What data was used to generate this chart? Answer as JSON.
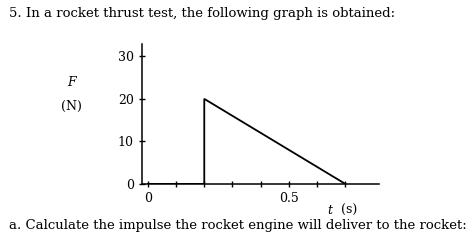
{
  "title_text": "5. In a rocket thrust test, the following graph is obtained:",
  "subtitle_text": "a. Calculate the impulse the rocket engine will deliver to the rocket:",
  "line_x": [
    0,
    0.2,
    0.2,
    0.7
  ],
  "line_y": [
    0,
    0,
    20,
    0
  ],
  "xlim": [
    -0.02,
    0.82
  ],
  "ylim": [
    0,
    33
  ],
  "yticks": [
    0,
    10,
    20,
    30
  ],
  "xtick_positions": [
    0,
    0.1,
    0.2,
    0.3,
    0.4,
    0.5,
    0.6,
    0.7
  ],
  "xtick_labels": [
    "0",
    "",
    "",
    "",
    "",
    "0.5",
    "",
    ""
  ],
  "xlabel_t": "t",
  "xlabel_s": "(s)",
  "ylabel_line1": "F",
  "ylabel_line2": "(N)",
  "line_color": "#000000",
  "bg_color": "#ffffff",
  "title_fontsize": 9.5,
  "subtitle_fontsize": 9.5,
  "axis_fontsize": 9,
  "tick_fontsize": 9
}
